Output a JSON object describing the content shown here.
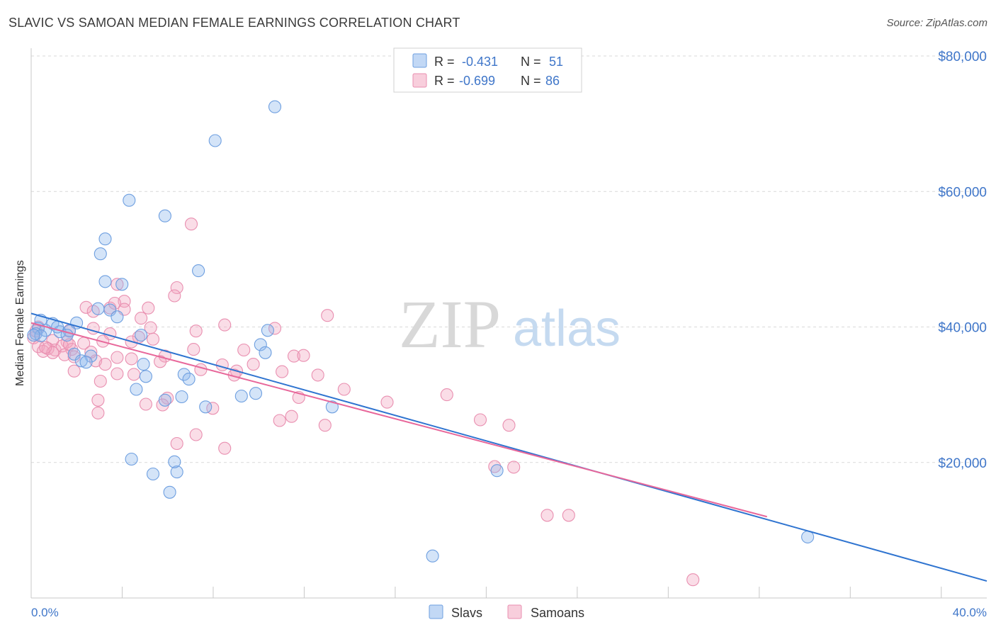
{
  "title": "SLAVIC VS SAMOAN MEDIAN FEMALE EARNINGS CORRELATION CHART",
  "source": "Source: ZipAtlas.com",
  "watermark": {
    "zip": "ZIP",
    "atlas": "atlas"
  },
  "colors": {
    "slavs": "#8fb8ec",
    "slavs_line": "#2f74d0",
    "samoans": "#f2a6c0",
    "samoans_line": "#e8679a",
    "axis_text": "#3f76c9",
    "grid": "#d9d9d9"
  },
  "legend": [
    {
      "r_label": "R =",
      "r_value": "-0.431",
      "n_label": "N =",
      "n_value": "51"
    },
    {
      "r_label": "R =",
      "r_value": "-0.699",
      "n_label": "N =",
      "n_value": "86"
    }
  ],
  "chart_data": {
    "type": "scatter",
    "title": "SLAVIC VS SAMOAN MEDIAN FEMALE EARNINGS CORRELATION CHART",
    "xlabel": "",
    "ylabel": "Median Female Earnings",
    "xlim": [
      0,
      40
    ],
    "ylim": [
      0,
      80000
    ],
    "x_tick_labels": [
      "0.0%",
      "40.0%"
    ],
    "y_ticks": [
      20000,
      40000,
      60000,
      80000
    ],
    "y_tick_labels": [
      "$20,000",
      "$40,000",
      "$60,000",
      "$80,000"
    ],
    "grid": true,
    "legend_position": "top-center",
    "bottom_legend": [
      "Slavs",
      "Samoans"
    ],
    "series": [
      {
        "name": "Slavs",
        "r": -0.431,
        "n": 51,
        "trend": {
          "x": [
            0,
            40
          ],
          "y": [
            42000,
            2500
          ]
        },
        "points": [
          [
            10.2,
            72500
          ],
          [
            7.7,
            67500
          ],
          [
            4.1,
            58700
          ],
          [
            5.6,
            56400
          ],
          [
            3.1,
            53000
          ],
          [
            2.9,
            50800
          ],
          [
            7.0,
            48300
          ],
          [
            3.1,
            46700
          ],
          [
            3.8,
            46300
          ],
          [
            2.8,
            42700
          ],
          [
            3.3,
            42500
          ],
          [
            3.6,
            41500
          ],
          [
            0.4,
            41000
          ],
          [
            0.9,
            40500
          ],
          [
            1.9,
            40600
          ],
          [
            0.3,
            39800
          ],
          [
            0.6,
            39500
          ],
          [
            1.2,
            39300
          ],
          [
            1.6,
            39400
          ],
          [
            1.1,
            40000
          ],
          [
            0.2,
            39000
          ],
          [
            0.4,
            38700
          ],
          [
            1.5,
            38800
          ],
          [
            4.6,
            38800
          ],
          [
            9.9,
            39500
          ],
          [
            9.6,
            37400
          ],
          [
            9.8,
            36200
          ],
          [
            1.8,
            36000
          ],
          [
            2.5,
            35700
          ],
          [
            2.1,
            35000
          ],
          [
            2.3,
            34800
          ],
          [
            4.7,
            34500
          ],
          [
            6.4,
            33000
          ],
          [
            6.6,
            32300
          ],
          [
            4.8,
            32700
          ],
          [
            4.4,
            30800
          ],
          [
            8.8,
            29800
          ],
          [
            9.4,
            30200
          ],
          [
            6.3,
            29700
          ],
          [
            5.6,
            29200
          ],
          [
            7.3,
            28200
          ],
          [
            12.6,
            28200
          ],
          [
            4.2,
            20500
          ],
          [
            5.1,
            18300
          ],
          [
            6.1,
            18600
          ],
          [
            6.0,
            20100
          ],
          [
            5.8,
            15600
          ],
          [
            19.5,
            18800
          ],
          [
            32.5,
            9000
          ],
          [
            16.8,
            6200
          ],
          [
            0.1,
            38800
          ]
        ]
      },
      {
        "name": "Samoans",
        "r": -0.699,
        "n": 86,
        "trend": {
          "x": [
            0,
            30.8
          ],
          "y": [
            40600,
            12000
          ]
        },
        "points": [
          [
            6.7,
            55200
          ],
          [
            6.1,
            45800
          ],
          [
            3.6,
            46300
          ],
          [
            6.0,
            44600
          ],
          [
            3.9,
            43800
          ],
          [
            2.3,
            42900
          ],
          [
            2.6,
            42300
          ],
          [
            3.3,
            42800
          ],
          [
            3.9,
            42600
          ],
          [
            4.9,
            42800
          ],
          [
            12.4,
            41700
          ],
          [
            3.5,
            43500
          ],
          [
            4.6,
            41300
          ],
          [
            8.1,
            40300
          ],
          [
            0.3,
            40000
          ],
          [
            1.6,
            39500
          ],
          [
            2.6,
            39800
          ],
          [
            5.0,
            39900
          ],
          [
            10.2,
            39800
          ],
          [
            6.9,
            39400
          ],
          [
            3.3,
            39000
          ],
          [
            4.5,
            38500
          ],
          [
            5.1,
            38200
          ],
          [
            0.1,
            38400
          ],
          [
            0.9,
            38000
          ],
          [
            1.5,
            37800
          ],
          [
            2.2,
            37600
          ],
          [
            4.2,
            37800
          ],
          [
            0.3,
            37100
          ],
          [
            0.7,
            36800
          ],
          [
            1.0,
            36600
          ],
          [
            1.3,
            37200
          ],
          [
            0.5,
            36400
          ],
          [
            1.7,
            36700
          ],
          [
            0.9,
            36200
          ],
          [
            1.4,
            35900
          ],
          [
            6.8,
            36700
          ],
          [
            8.9,
            36600
          ],
          [
            1.8,
            35600
          ],
          [
            3.6,
            35500
          ],
          [
            5.6,
            35700
          ],
          [
            11.0,
            35700
          ],
          [
            11.4,
            35800
          ],
          [
            2.7,
            35000
          ],
          [
            4.2,
            35300
          ],
          [
            5.4,
            34900
          ],
          [
            8.0,
            34400
          ],
          [
            9.3,
            34500
          ],
          [
            3.1,
            34500
          ],
          [
            1.8,
            33500
          ],
          [
            7.1,
            33700
          ],
          [
            8.6,
            33500
          ],
          [
            10.5,
            33400
          ],
          [
            3.6,
            33100
          ],
          [
            4.3,
            33000
          ],
          [
            2.9,
            32000
          ],
          [
            8.5,
            32900
          ],
          [
            12.0,
            32900
          ],
          [
            13.1,
            30800
          ],
          [
            17.4,
            30000
          ],
          [
            5.7,
            29500
          ],
          [
            11.2,
            29600
          ],
          [
            2.8,
            29200
          ],
          [
            4.8,
            28600
          ],
          [
            5.5,
            28500
          ],
          [
            7.6,
            28000
          ],
          [
            14.9,
            28900
          ],
          [
            2.8,
            27300
          ],
          [
            10.9,
            26800
          ],
          [
            10.4,
            26200
          ],
          [
            12.3,
            25500
          ],
          [
            18.8,
            26300
          ],
          [
            20.0,
            25500
          ],
          [
            6.1,
            22800
          ],
          [
            6.9,
            24100
          ],
          [
            8.1,
            22100
          ],
          [
            19.4,
            19400
          ],
          [
            20.2,
            19300
          ],
          [
            21.6,
            12200
          ],
          [
            22.5,
            12200
          ],
          [
            27.7,
            2700
          ],
          [
            0.2,
            39400
          ],
          [
            1.6,
            37400
          ],
          [
            2.5,
            36300
          ],
          [
            3.0,
            37900
          ],
          [
            0.6,
            37000
          ]
        ]
      }
    ]
  }
}
